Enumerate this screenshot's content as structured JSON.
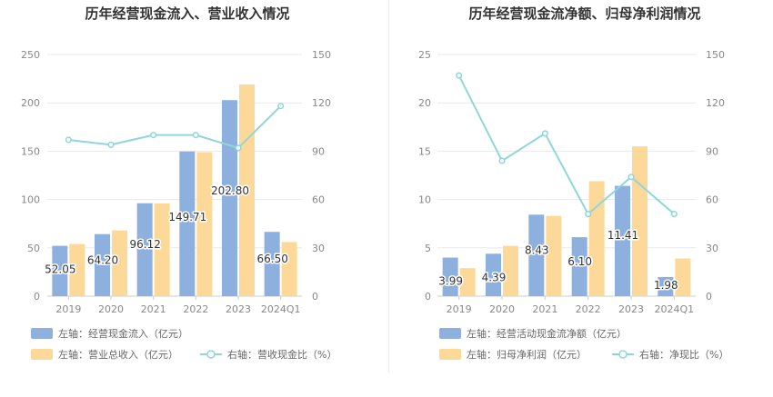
{
  "charts": [
    {
      "type": "bar",
      "title": "历年经营现金流入、营业收入情况",
      "categories": [
        "2019",
        "2020",
        "2021",
        "2022",
        "2023",
        "2024Q1"
      ],
      "left_axis": {
        "ylim": [
          0,
          250
        ],
        "ticks": [
          0,
          50,
          100,
          150,
          200,
          250
        ]
      },
      "right_axis": {
        "ylim": [
          0,
          150
        ],
        "ticks": [
          0,
          30,
          60,
          90,
          120,
          150
        ]
      },
      "series": [
        {
          "name": "左轴：经营现金流入（亿元）",
          "kind": "bar",
          "axis": "left",
          "color": "#8eb0de",
          "values": [
            52.05,
            64.2,
            96.12,
            149.71,
            202.8,
            66.5
          ],
          "labels": [
            "52.05",
            "64.20",
            "96.12",
            "149.71",
            "202.80",
            "66.50"
          ]
        },
        {
          "name": "左轴：营业总收入（亿元）",
          "kind": "bar",
          "axis": "left",
          "color": "#fdd999",
          "values": [
            54,
            68,
            96,
            149,
            219,
            56
          ]
        },
        {
          "name": "右轴：营收现金比（%）",
          "kind": "line",
          "axis": "right",
          "color": "#8fd6dc",
          "values": [
            97,
            94,
            100,
            100,
            92,
            118
          ]
        }
      ]
    },
    {
      "type": "bar",
      "title": "历年经营现金流净额、归母净利润情况",
      "categories": [
        "2019",
        "2020",
        "2021",
        "2022",
        "2023",
        "2024Q1"
      ],
      "left_axis": {
        "ylim": [
          0,
          25
        ],
        "ticks": [
          0,
          5,
          10,
          15,
          20,
          25
        ]
      },
      "right_axis": {
        "ylim": [
          0,
          150
        ],
        "ticks": [
          0,
          30,
          60,
          90,
          120,
          150
        ]
      },
      "series": [
        {
          "name": "左轴：经营活动现金流净额（亿元）",
          "kind": "bar",
          "axis": "left",
          "color": "#8eb0de",
          "values": [
            3.99,
            4.39,
            8.43,
            6.1,
            11.41,
            1.98
          ],
          "labels": [
            "3.99",
            "4.39",
            "8.43",
            "6.10",
            "11.41",
            "1.98"
          ]
        },
        {
          "name": "左轴：归母净利润（亿元）",
          "kind": "bar",
          "axis": "left",
          "color": "#fdd999",
          "values": [
            2.9,
            5.2,
            8.3,
            11.9,
            15.5,
            3.9
          ]
        },
        {
          "name": "右轴：净现比（%）",
          "kind": "line",
          "axis": "right",
          "color": "#8fd6dc",
          "values": [
            137,
            84,
            101,
            51,
            74,
            51
          ]
        }
      ]
    }
  ]
}
